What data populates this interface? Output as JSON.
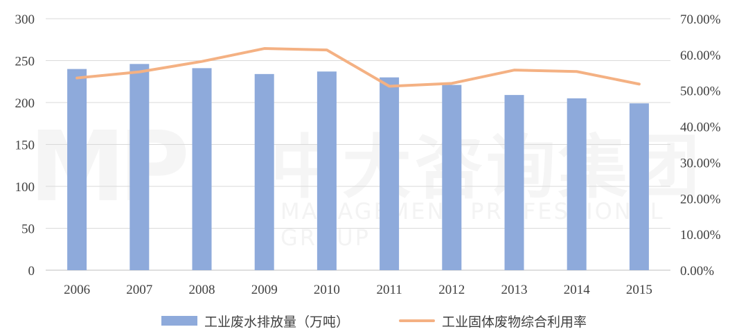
{
  "chart_data": {
    "type": "bar",
    "categories": [
      "2006",
      "2007",
      "2008",
      "2009",
      "2010",
      "2011",
      "2012",
      "2013",
      "2014",
      "2015"
    ],
    "series": [
      {
        "name": "工业废水排放量（万吨）",
        "chart_type": "bar",
        "axis": "left",
        "color": "#8eaadb",
        "values": [
          240,
          246,
          241,
          234,
          237,
          230,
          221,
          209,
          205,
          199
        ]
      },
      {
        "name": "工业固体废物综合利用率",
        "chart_type": "line",
        "axis": "right",
        "color": "#f4b183",
        "values": [
          0.535,
          0.552,
          0.581,
          0.617,
          0.613,
          0.512,
          0.52,
          0.557,
          0.553,
          0.518
        ]
      }
    ],
    "y_left": {
      "min": 0,
      "max": 300,
      "ticks": [
        "0",
        "50",
        "100",
        "150",
        "200",
        "250",
        "300"
      ]
    },
    "y_right": {
      "min": 0,
      "max": 0.7,
      "ticks": [
        "0.00%",
        "10.00%",
        "20.00%",
        "30.00%",
        "40.00%",
        "50.00%",
        "60.00%",
        "70.00%"
      ]
    },
    "grid": true,
    "legend_position": "bottom",
    "title": "",
    "xlabel": "",
    "ylabel": ""
  },
  "watermark": {
    "logo": "MP",
    "cn": "中大咨询集团",
    "en": "MANAGEMENT PROFESSIONAL GROUP"
  }
}
